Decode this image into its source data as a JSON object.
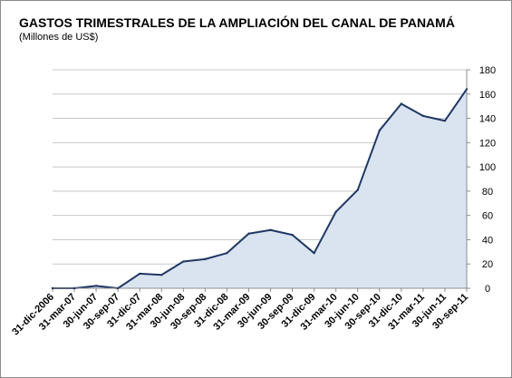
{
  "chart_data": {
    "type": "area",
    "title": "GASTOS TRIMESTRALES DE LA AMPLIACIÓN DEL CANAL DE PANAMÁ",
    "subtitle": "(Millones de US$)",
    "categories": [
      "31-dic-2006",
      "31-mar-07",
      "30-jun-07",
      "30-sep-07",
      "31-dic-07",
      "31-mar-08",
      "30-jun-08",
      "30-sep-08",
      "31-dic-08",
      "31-mar-09",
      "30-jun-09",
      "30-sep-09",
      "31-dic-09",
      "31-mar-10",
      "30-jun-10",
      "30-sep-10",
      "31-dic-10",
      "31-mar-11",
      "30-jun-11",
      "30-sep-11"
    ],
    "values": [
      0,
      0,
      2,
      0,
      12,
      11,
      22,
      24,
      29,
      45,
      48,
      44,
      29,
      63,
      81,
      130,
      152,
      142,
      138,
      164
    ],
    "y_ticks": [
      0,
      20,
      40,
      60,
      80,
      100,
      120,
      140,
      160,
      180
    ],
    "ylim": [
      0,
      180
    ],
    "y_axis_side": "right",
    "grid": "horizontal",
    "legend": "none",
    "colors": {
      "line": "#1f3864",
      "fill": "#dae3f0",
      "grid": "#c8c8c8",
      "axis": "#8c8c8c"
    }
  }
}
